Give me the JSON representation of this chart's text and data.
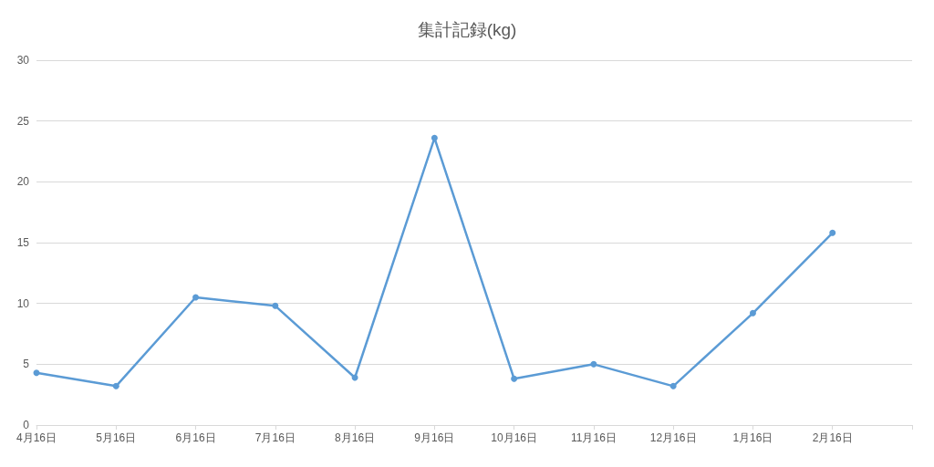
{
  "chart_data": {
    "type": "line",
    "title": "集計記録(kg)",
    "categories": [
      "4月16日",
      "5月16日",
      "6月16日",
      "7月16日",
      "8月16日",
      "9月16日",
      "10月16日",
      "11月16日",
      "12月16日",
      "1月16日",
      "2月16日",
      null
    ],
    "series": [
      {
        "color": "#5b9bd5",
        "values": [
          4.3,
          3.2,
          10.5,
          9.8,
          3.9,
          23.6,
          3.8,
          5.0,
          3.2,
          9.2,
          15.8,
          null
        ]
      }
    ],
    "ylim": [
      0,
      30
    ],
    "yticks": [
      0,
      5,
      10,
      15,
      20,
      25,
      30
    ],
    "grid": "y",
    "marker": "circle",
    "line_style": "solid"
  }
}
